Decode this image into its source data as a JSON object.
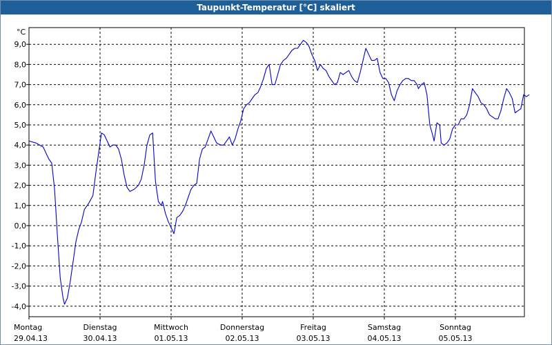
{
  "window": {
    "title": "Taupunkt-Temperatur [°C] skaliert"
  },
  "chart_data": {
    "type": "line",
    "title": "Taupunkt-Temperatur [°C] skaliert",
    "ylabel": "°C",
    "ylim": [
      -4.5,
      9.5
    ],
    "yticks": [
      "9,0",
      "8,0",
      "7,0",
      "6,0",
      "5,0",
      "4,0",
      "3,0",
      "2,0",
      "1,0",
      "0,0",
      "-1,0",
      "-2,0",
      "-3,0",
      "-4,0"
    ],
    "ytick_values": [
      9,
      8,
      7,
      6,
      5,
      4,
      3,
      2,
      1,
      0,
      -1,
      -2,
      -3,
      -4
    ],
    "xlim": [
      0,
      7.04
    ],
    "days": [
      {
        "weekday": "Montag",
        "date": "29.04.13"
      },
      {
        "weekday": "Dienstag",
        "date": "30.04.13"
      },
      {
        "weekday": "Mittwoch",
        "date": "01.05.13"
      },
      {
        "weekday": "Donnerstag",
        "date": "02.05.13"
      },
      {
        "weekday": "Freitag",
        "date": "03.05.13"
      },
      {
        "weekday": "Samstag",
        "date": "04.05.13"
      },
      {
        "weekday": "Sonntag",
        "date": "05.05.13"
      }
    ],
    "grid": true,
    "series": [
      {
        "color": "#0000cc",
        "points": [
          [
            0.0,
            4.2
          ],
          [
            0.1,
            4.1
          ],
          [
            0.2,
            3.9
          ],
          [
            0.28,
            3.3
          ],
          [
            0.32,
            3.1
          ],
          [
            0.36,
            1.8
          ],
          [
            0.4,
            -0.5
          ],
          [
            0.44,
            -2.6
          ],
          [
            0.48,
            -3.6
          ],
          [
            0.5,
            -3.9
          ],
          [
            0.54,
            -3.6
          ],
          [
            0.58,
            -2.8
          ],
          [
            0.62,
            -1.8
          ],
          [
            0.66,
            -0.8
          ],
          [
            0.7,
            -0.2
          ],
          [
            0.74,
            0.2
          ],
          [
            0.78,
            0.8
          ],
          [
            0.84,
            1.1
          ],
          [
            0.9,
            1.5
          ],
          [
            0.94,
            2.6
          ],
          [
            0.98,
            3.6
          ],
          [
            1.02,
            4.6
          ],
          [
            1.06,
            4.5
          ],
          [
            1.1,
            4.2
          ],
          [
            1.14,
            3.9
          ],
          [
            1.18,
            4.0
          ],
          [
            1.22,
            4.0
          ],
          [
            1.26,
            3.8
          ],
          [
            1.3,
            3.3
          ],
          [
            1.34,
            2.5
          ],
          [
            1.38,
            1.9
          ],
          [
            1.42,
            1.7
          ],
          [
            1.48,
            1.8
          ],
          [
            1.54,
            2.0
          ],
          [
            1.58,
            2.3
          ],
          [
            1.62,
            3.0
          ],
          [
            1.66,
            4.0
          ],
          [
            1.7,
            4.5
          ],
          [
            1.74,
            4.6
          ],
          [
            1.78,
            2.2
          ],
          [
            1.82,
            1.2
          ],
          [
            1.86,
            1.0
          ],
          [
            1.88,
            1.2
          ],
          [
            1.92,
            0.6
          ],
          [
            1.96,
            0.2
          ],
          [
            2.0,
            -0.1
          ],
          [
            2.04,
            -0.4
          ],
          [
            2.08,
            0.4
          ],
          [
            2.12,
            0.5
          ],
          [
            2.16,
            0.7
          ],
          [
            2.2,
            1.0
          ],
          [
            2.24,
            1.4
          ],
          [
            2.28,
            1.8
          ],
          [
            2.32,
            2.0
          ],
          [
            2.36,
            2.1
          ],
          [
            2.4,
            3.3
          ],
          [
            2.44,
            3.8
          ],
          [
            2.48,
            3.9
          ],
          [
            2.52,
            4.3
          ],
          [
            2.56,
            4.7
          ],
          [
            2.6,
            4.4
          ],
          [
            2.64,
            4.1
          ],
          [
            2.7,
            4.0
          ],
          [
            2.74,
            4.0
          ],
          [
            2.78,
            4.2
          ],
          [
            2.82,
            4.4
          ],
          [
            2.86,
            4.0
          ],
          [
            2.9,
            4.3
          ],
          [
            2.94,
            4.8
          ],
          [
            2.98,
            5.2
          ],
          [
            3.02,
            5.8
          ],
          [
            3.06,
            6.0
          ],
          [
            3.1,
            6.1
          ],
          [
            3.14,
            6.3
          ],
          [
            3.18,
            6.5
          ],
          [
            3.22,
            6.6
          ],
          [
            3.26,
            6.9
          ],
          [
            3.3,
            7.3
          ],
          [
            3.34,
            7.8
          ],
          [
            3.38,
            8.0
          ],
          [
            3.42,
            7.0
          ],
          [
            3.46,
            7.0
          ],
          [
            3.5,
            7.5
          ],
          [
            3.54,
            8.0
          ],
          [
            3.58,
            8.2
          ],
          [
            3.62,
            8.3
          ],
          [
            3.66,
            8.5
          ],
          [
            3.7,
            8.7
          ],
          [
            3.74,
            8.8
          ],
          [
            3.78,
            8.8
          ],
          [
            3.82,
            9.0
          ],
          [
            3.86,
            9.2
          ],
          [
            3.9,
            9.1
          ],
          [
            3.94,
            8.9
          ],
          [
            3.98,
            8.5
          ],
          [
            4.02,
            8.2
          ],
          [
            4.06,
            7.7
          ],
          [
            4.1,
            8.0
          ],
          [
            4.14,
            7.8
          ],
          [
            4.18,
            7.7
          ],
          [
            4.22,
            7.4
          ],
          [
            4.26,
            7.2
          ],
          [
            4.3,
            7.0
          ],
          [
            4.34,
            7.1
          ],
          [
            4.38,
            7.6
          ],
          [
            4.42,
            7.5
          ],
          [
            4.46,
            7.6
          ],
          [
            4.5,
            7.7
          ],
          [
            4.54,
            7.4
          ],
          [
            4.58,
            7.2
          ],
          [
            4.62,
            7.1
          ],
          [
            4.66,
            7.6
          ],
          [
            4.7,
            8.2
          ],
          [
            4.74,
            8.8
          ],
          [
            4.78,
            8.5
          ],
          [
            4.82,
            8.2
          ],
          [
            4.86,
            8.2
          ],
          [
            4.9,
            8.3
          ],
          [
            4.94,
            7.6
          ],
          [
            4.98,
            7.3
          ],
          [
            5.02,
            7.3
          ],
          [
            5.06,
            7.1
          ],
          [
            5.1,
            6.5
          ],
          [
            5.14,
            6.2
          ],
          [
            5.18,
            6.7
          ],
          [
            5.22,
            7.0
          ],
          [
            5.26,
            7.2
          ],
          [
            5.3,
            7.3
          ],
          [
            5.34,
            7.3
          ],
          [
            5.38,
            7.2
          ],
          [
            5.42,
            7.2
          ],
          [
            5.46,
            7.0
          ],
          [
            5.48,
            6.8
          ],
          [
            5.52,
            7.0
          ],
          [
            5.56,
            7.1
          ],
          [
            5.6,
            6.5
          ],
          [
            5.64,
            5.0
          ],
          [
            5.68,
            4.5
          ],
          [
            5.7,
            4.2
          ],
          [
            5.74,
            5.1
          ],
          [
            5.78,
            5.0
          ],
          [
            5.8,
            4.1
          ],
          [
            5.84,
            4.0
          ],
          [
            5.88,
            4.1
          ],
          [
            5.92,
            4.3
          ],
          [
            5.96,
            4.8
          ],
          [
            6.0,
            5.0
          ],
          [
            6.04,
            5.0
          ],
          [
            6.08,
            5.3
          ],
          [
            6.12,
            5.3
          ],
          [
            6.16,
            5.5
          ],
          [
            6.2,
            6.0
          ],
          [
            6.24,
            6.8
          ],
          [
            6.28,
            6.6
          ],
          [
            6.32,
            6.4
          ],
          [
            6.36,
            6.1
          ],
          [
            6.4,
            6.0
          ],
          [
            6.44,
            5.8
          ],
          [
            6.48,
            5.5
          ],
          [
            6.52,
            5.4
          ],
          [
            6.56,
            5.3
          ],
          [
            6.6,
            5.3
          ],
          [
            6.64,
            5.7
          ],
          [
            6.68,
            6.3
          ],
          [
            6.72,
            6.8
          ],
          [
            6.76,
            6.6
          ],
          [
            6.8,
            6.3
          ],
          [
            6.84,
            5.6
          ],
          [
            6.88,
            5.7
          ],
          [
            6.92,
            5.8
          ],
          [
            6.96,
            6.5
          ],
          [
            7.0,
            6.4
          ],
          [
            7.04,
            6.5
          ]
        ]
      }
    ]
  }
}
